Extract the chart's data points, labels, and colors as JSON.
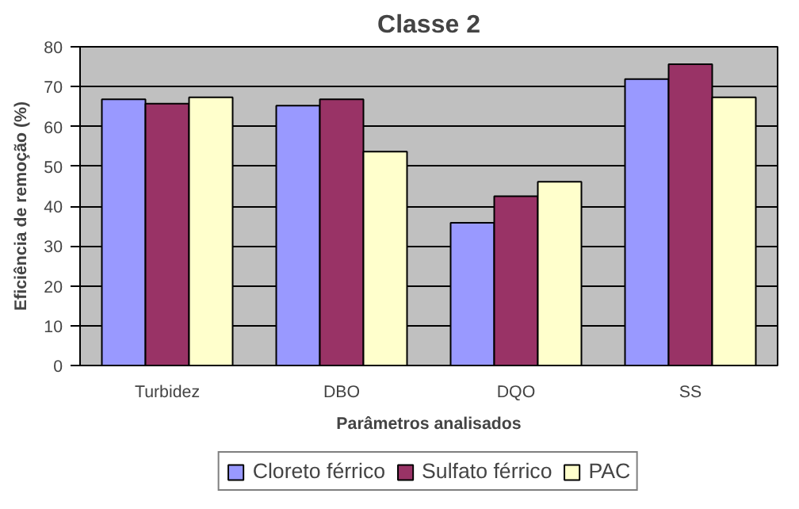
{
  "chart_data": {
    "type": "bar",
    "title": "Classe 2",
    "xlabel": "Parâmetros analisados",
    "ylabel": "Eficiência de remoção (%)",
    "categories": [
      "Turbidez",
      "DBO",
      "DQO",
      "SS"
    ],
    "series": [
      {
        "name": "Cloreto férrico",
        "color": "#9999ff",
        "values": [
          66.8,
          65.2,
          35.8,
          71.9
        ]
      },
      {
        "name": "Sulfato férrico",
        "color": "#993366",
        "values": [
          65.7,
          66.8,
          42.5,
          75.6
        ]
      },
      {
        "name": "PAC",
        "color": "#ffffcc",
        "values": [
          67.3,
          53.7,
          46.1,
          67.3
        ]
      }
    ],
    "ylim": [
      0,
      80
    ],
    "yticks": [
      0,
      10,
      20,
      30,
      40,
      50,
      60,
      70,
      80
    ],
    "grid": "y",
    "legend": "bottom"
  }
}
